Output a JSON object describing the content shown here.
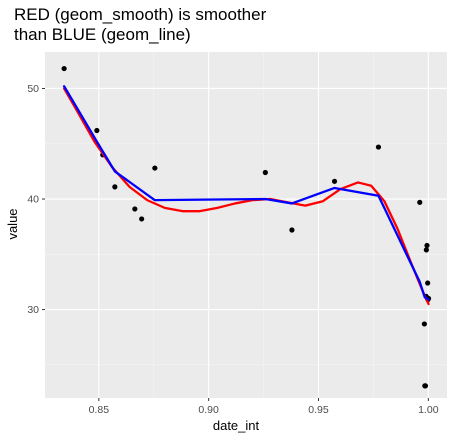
{
  "chart_data": {
    "type": "scatter",
    "title": [
      "RED (geom_smooth) is smoother",
      "than BLUE (geom_line)"
    ],
    "xlabel": "date_int",
    "ylabel": "value",
    "xlim": [
      0.8255,
      1.0085
    ],
    "ylim": [
      22.0,
      53.3
    ],
    "xticks": [
      0.85,
      0.9,
      0.95,
      1.0
    ],
    "xtick_labels": [
      "0.85",
      "0.90",
      "0.95",
      "1.00"
    ],
    "yticks": [
      30,
      40,
      50
    ],
    "ytick_labels": [
      "30",
      "40",
      "50"
    ],
    "grid": true,
    "legend": "none",
    "panel_color": "#ebebeb",
    "series": [
      {
        "kind": "points",
        "color": "#000000",
        "points": [
          [
            0.8342,
            51.8
          ],
          [
            0.8491,
            46.2
          ],
          [
            0.8518,
            44.0
          ],
          [
            0.8573,
            41.1
          ],
          [
            0.8664,
            39.1
          ],
          [
            0.8695,
            38.2
          ],
          [
            0.8755,
            42.8
          ],
          [
            0.9258,
            42.4
          ],
          [
            0.9379,
            37.2
          ],
          [
            0.9573,
            41.6
          ],
          [
            0.9773,
            44.7
          ],
          [
            0.9961,
            39.7
          ],
          [
            0.9982,
            28.7
          ],
          [
            0.9991,
            35.4
          ],
          [
            0.9994,
            35.8
          ],
          [
            0.9997,
            32.4
          ],
          [
            0.999,
            31.2
          ],
          [
            0.9998,
            30.9
          ],
          [
            1.0001,
            31.0
          ],
          [
            0.9984,
            23.1
          ],
          [
            0.9987,
            23.1
          ]
        ]
      },
      {
        "kind": "smooth",
        "color": "#ff0000",
        "points": [
          [
            0.8342,
            50.0
          ],
          [
            0.84,
            48.0
          ],
          [
            0.848,
            45.2
          ],
          [
            0.856,
            42.9
          ],
          [
            0.864,
            41.1
          ],
          [
            0.872,
            39.9
          ],
          [
            0.88,
            39.2
          ],
          [
            0.888,
            38.9
          ],
          [
            0.896,
            38.9
          ],
          [
            0.904,
            39.2
          ],
          [
            0.912,
            39.6
          ],
          [
            0.92,
            39.9
          ],
          [
            0.928,
            40.0
          ],
          [
            0.936,
            39.7
          ],
          [
            0.944,
            39.4
          ],
          [
            0.952,
            39.8
          ],
          [
            0.96,
            40.9
          ],
          [
            0.968,
            41.5
          ],
          [
            0.974,
            41.2
          ],
          [
            0.98,
            39.8
          ],
          [
            0.986,
            37.3
          ],
          [
            0.992,
            34.3
          ],
          [
            0.998,
            31.4
          ],
          [
            1.0001,
            30.5
          ]
        ]
      },
      {
        "kind": "line",
        "color": "#0000ff",
        "points": [
          [
            0.8342,
            50.2
          ],
          [
            0.8491,
            45.2
          ],
          [
            0.8573,
            42.5
          ],
          [
            0.8755,
            39.9
          ],
          [
            0.9258,
            40.0
          ],
          [
            0.9379,
            39.6
          ],
          [
            0.9573,
            41.0
          ],
          [
            0.9773,
            40.3
          ],
          [
            0.9961,
            32.5
          ],
          [
            0.9984,
            31.1
          ],
          [
            1.0001,
            30.9
          ]
        ]
      }
    ]
  }
}
